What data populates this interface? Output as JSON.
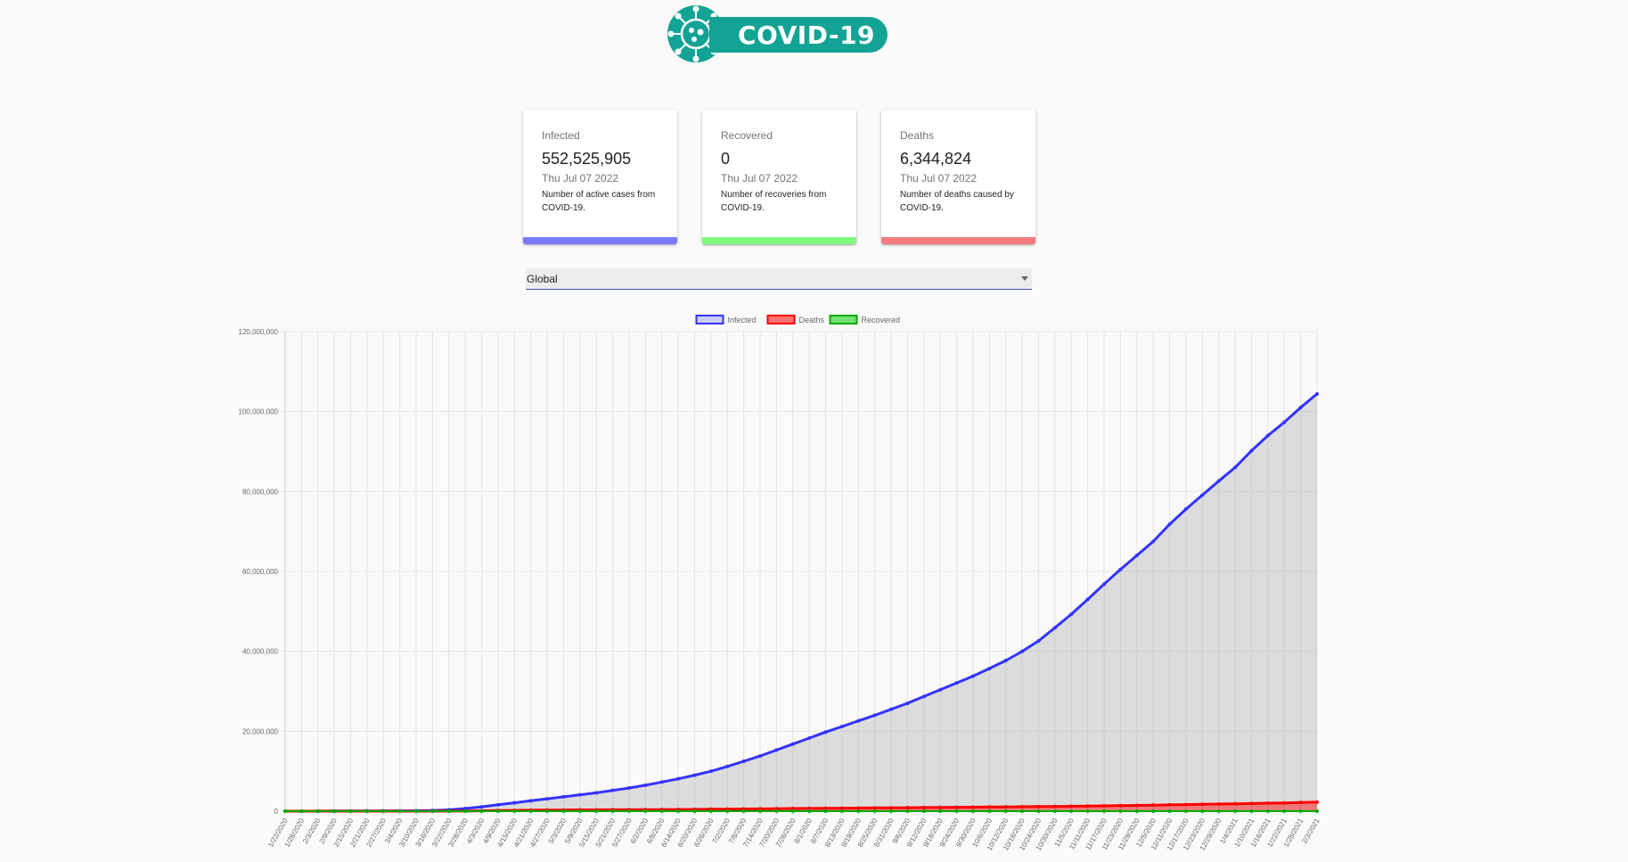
{
  "app": {
    "logo_text": "COVID-19",
    "colors": {
      "brand": "#12a394",
      "infected": "#7b7bff",
      "recovered": "#7dfc7d",
      "deaths": "#f57c7c"
    }
  },
  "cards": [
    {
      "title": "Infected",
      "value": "552,525,905",
      "date": "Thu Jul 07 2022",
      "description": "Number of active cases from COVID-19."
    },
    {
      "title": "Recovered",
      "value": "0",
      "date": "Thu Jul 07 2022",
      "description": "Number of recoveries from COVID-19."
    },
    {
      "title": "Deaths",
      "value": "6,344,824",
      "date": "Thu Jul 07 2022",
      "description": "Number of deaths caused by COVID-19."
    }
  ],
  "country_select": {
    "selected": "Global"
  },
  "chart_data": {
    "type": "line",
    "legend": {
      "position": "top",
      "items": [
        {
          "name": "Infected",
          "color": "#3333ff"
        },
        {
          "name": "Deaths",
          "color": "#ff0000"
        },
        {
          "name": "Recovered",
          "color": "#00aa00"
        }
      ]
    },
    "grid": true,
    "ylim": [
      0,
      120000000
    ],
    "y_ticks": [
      "0",
      "20,000,000",
      "40,000,000",
      "60,000,000",
      "80,000,000",
      "100,000,000",
      "120,000,000"
    ],
    "x_ticks": [
      "1/22/2020",
      "1/28/2020",
      "2/3/2020",
      "2/9/2020",
      "2/15/2020",
      "2/21/2020",
      "2/27/2020",
      "3/4/2020",
      "3/10/2020",
      "3/16/2020",
      "3/22/2020",
      "3/28/2020",
      "4/3/2020",
      "4/9/2020",
      "4/15/2020",
      "4/21/2020",
      "4/27/2020",
      "5/3/2020",
      "5/9/2020",
      "5/15/2020",
      "5/21/2020",
      "5/27/2020",
      "6/2/2020",
      "6/8/2020",
      "6/14/2020",
      "6/20/2020",
      "6/26/2020",
      "7/2/2020",
      "7/8/2020",
      "7/14/2020",
      "7/20/2020",
      "7/26/2020",
      "8/1/2020",
      "8/7/2020",
      "8/13/2020",
      "8/19/2020",
      "8/25/2020",
      "8/31/2020",
      "9/6/2020",
      "9/12/2020",
      "9/18/2020",
      "9/24/2020",
      "9/30/2020",
      "10/6/2020",
      "10/12/2020",
      "10/18/2020",
      "10/24/2020",
      "10/30/2020",
      "11/5/2020",
      "11/11/2020",
      "11/17/2020",
      "11/23/2020",
      "11/29/2020",
      "12/5/2020",
      "12/11/2020",
      "12/17/2020",
      "12/23/2020",
      "12/29/2020",
      "1/4/2021",
      "1/10/2021",
      "1/16/2021",
      "1/22/2021",
      "1/28/2021",
      "2/3/2021"
    ],
    "series": [
      {
        "name": "Infected",
        "values": [
          555,
          7800,
          20600,
          40500,
          69000,
          77000,
          84000,
          95000,
          118000,
          182000,
          339000,
          664000,
          1100000,
          1600000,
          2100000,
          2600000,
          3100000,
          3600000,
          4100000,
          4600000,
          5200000,
          5800000,
          6500000,
          7300000,
          8100000,
          9000000,
          10000000,
          11200000,
          12500000,
          13800000,
          15300000,
          16800000,
          18300000,
          19800000,
          21200000,
          22600000,
          24000000,
          25500000,
          27000000,
          28700000,
          30400000,
          32100000,
          33800000,
          35700000,
          37700000,
          40000000,
          42600000,
          45900000,
          49300000,
          53000000,
          56800000,
          60500000,
          64000000,
          67500000,
          71800000,
          75600000,
          79100000,
          82600000,
          86000000,
          90200000,
          94000000,
          97300000,
          101000000,
          104400000
        ]
      },
      {
        "name": "Deaths",
        "values": [
          17,
          130,
          430,
          900,
          1500,
          2250,
          2800,
          3300,
          4300,
          7400,
          16000,
          33000,
          89000,
          163000,
          208000,
          239000,
          267000,
          291000,
          325000,
          339000,
          352000,
          363000,
          385000,
          402000,
          427000,
          448000,
          495000,
          516000,
          553000,
          580000,
          616000,
          658000,
          687000,
          713000,
          758000,
          781000,
          818000,
          849000,
          880000,
          915000,
          952000,
          981000,
          1013000,
          1048000,
          1080000,
          1107000,
          1150000,
          1190000,
          1234000,
          1285000,
          1334000,
          1384000,
          1458000,
          1525000,
          1590000,
          1656000,
          1714000,
          1790000,
          1861000,
          1927000,
          2003000,
          2076000,
          2164000,
          2250000
        ]
      },
      {
        "name": "Recovered",
        "values": [
          0,
          0,
          0,
          0,
          0,
          0,
          0,
          0,
          0,
          0,
          0,
          0,
          0,
          0,
          0,
          0,
          0,
          0,
          0,
          0,
          0,
          0,
          0,
          0,
          0,
          0,
          0,
          0,
          0,
          0,
          0,
          0,
          0,
          0,
          0,
          0,
          0,
          0,
          0,
          0,
          0,
          0,
          0,
          0,
          0,
          0,
          0,
          0,
          0,
          0,
          0,
          0,
          0,
          0,
          0,
          0,
          0,
          0,
          0,
          0,
          0,
          0,
          0,
          0
        ]
      }
    ]
  }
}
